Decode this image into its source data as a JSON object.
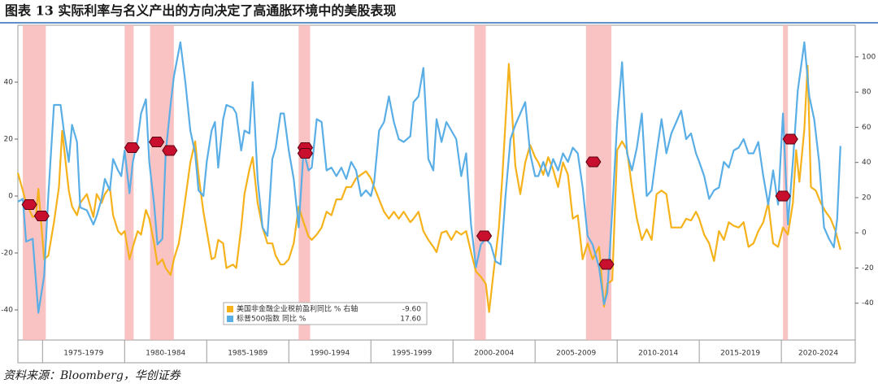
{
  "chart_data": {
    "type": "line",
    "title": "图表 13 实际利率与名义产出的方向决定了高通胀环境中的美股表现",
    "source": "资料来源：Bloomberg，华创证券",
    "xlim": [
      1973.5,
      2024.5
    ],
    "xticks": [
      {
        "value": 1975,
        "label": "1975-1979"
      },
      {
        "value": 1980,
        "label": "1980-1984"
      },
      {
        "value": 1985,
        "label": "1985-1989"
      },
      {
        "value": 1990,
        "label": "1990-1994"
      },
      {
        "value": 1995,
        "label": "1995-1999"
      },
      {
        "value": 2000,
        "label": "2000-2004"
      },
      {
        "value": 2005,
        "label": "2005-2009"
      },
      {
        "value": 2010,
        "label": "2010-2014"
      },
      {
        "value": 2015,
        "label": "2015-2019"
      },
      {
        "value": 2020,
        "label": "2020-2024"
      }
    ],
    "ylim": [
      -50,
      60
    ],
    "yticks": [
      -40,
      -20,
      0,
      20,
      40
    ],
    "y2lim": [
      -60,
      118
    ],
    "y2ticks": [
      -40,
      -20,
      0,
      20,
      40,
      60,
      80,
      100
    ],
    "shaded_periods": [
      [
        1973.8,
        1975.2
      ],
      [
        1980.0,
        1980.55
      ],
      [
        1981.55,
        1983.0
      ],
      [
        1990.6,
        1991.3
      ],
      [
        2001.3,
        2002.0
      ],
      [
        2008.1,
        2009.65
      ],
      [
        2020.1,
        2020.4
      ]
    ],
    "shade_color": "#f8b4b4",
    "markers": {
      "color": "#c8102e",
      "x": [
        1974.2,
        1974.95,
        1980.45,
        1981.95,
        1982.75,
        1991.0,
        1991.0,
        2001.9,
        2008.55,
        2009.35,
        2020.1,
        2020.55
      ],
      "y": [
        -3,
        -7,
        17,
        19,
        16,
        17,
        15,
        -14,
        12,
        -24,
        0,
        20
      ]
    },
    "series": [
      {
        "name": "美国非金融企业税前盈利同比 % 右轴",
        "legend_value": "-9.60",
        "color": "#f5b21b",
        "axis": "y2",
        "x": [
          1973.5,
          1973.8,
          1974.0,
          1974.4,
          1974.6,
          1974.75,
          1975.1,
          1975.35,
          1975.7,
          1976.0,
          1976.2,
          1976.6,
          1976.8,
          1977.1,
          1977.3,
          1977.7,
          1978.1,
          1978.3,
          1978.6,
          1978.8,
          1979.1,
          1979.3,
          1979.6,
          1979.8,
          1980.0,
          1980.3,
          1980.5,
          1980.8,
          1981.0,
          1981.3,
          1981.5,
          1981.8,
          1982.0,
          1982.3,
          1982.5,
          1982.8,
          1983.0,
          1983.3,
          1983.5,
          1983.8,
          1984.0,
          1984.3,
          1984.5,
          1984.8,
          1985.0,
          1985.3,
          1985.5,
          1985.7,
          1986.0,
          1986.2,
          1986.6,
          1986.8,
          1987.1,
          1987.3,
          1987.6,
          1987.8,
          1988.1,
          1988.4,
          1988.7,
          1989.0,
          1989.2,
          1989.5,
          1989.7,
          1990.0,
          1990.3,
          1990.6,
          1990.9,
          1991.2,
          1991.4,
          1991.7,
          1992.0,
          1992.3,
          1992.6,
          1992.9,
          1993.2,
          1993.5,
          1993.8,
          1994.1,
          1994.4,
          1994.7,
          1995.0,
          1995.2,
          1995.5,
          1995.8,
          1996.1,
          1996.4,
          1996.7,
          1997.0,
          1997.4,
          1997.6,
          1997.9,
          1998.2,
          1998.5,
          1998.8,
          1999.0,
          1999.3,
          1999.6,
          1999.9,
          2000.2,
          2000.5,
          2000.8,
          2001.1,
          2001.4,
          2001.7,
          2002.0,
          2002.2,
          2002.5,
          2002.8,
          2003.0,
          2003.2,
          2003.4,
          2003.6,
          2003.8,
          2004.1,
          2004.4,
          2004.7,
          2005.0,
          2005.2,
          2005.5,
          2005.8,
          2006.1,
          2006.4,
          2006.7,
          2007.0,
          2007.3,
          2007.6,
          2007.9,
          2008.2,
          2008.5,
          2008.9,
          2009.2,
          2009.4,
          2009.7,
          2010.0,
          2010.3,
          2010.6,
          2010.9,
          2011.2,
          2011.5,
          2011.8,
          2012.1,
          2012.4,
          2012.7,
          2013.0,
          2013.3,
          2013.6,
          2013.9,
          2014.2,
          2014.5,
          2014.8,
          2015.0,
          2015.3,
          2015.6,
          2015.9,
          2016.2,
          2016.5,
          2016.8,
          2017.1,
          2017.4,
          2017.7,
          2018.0,
          2018.3,
          2018.6,
          2018.9,
          2019.2,
          2019.5,
          2019.8,
          2020.1,
          2020.4,
          2020.7,
          2020.9,
          2021.1,
          2021.4,
          2021.6,
          2021.8,
          2022.1,
          2022.4,
          2022.7,
          2023.0,
          2023.3,
          2023.6
        ],
        "values": [
          34,
          24,
          17,
          9,
          10,
          25,
          -15,
          -13,
          6,
          26,
          58,
          24,
          15,
          10,
          17,
          22,
          9,
          22,
          17,
          22,
          26,
          10,
          1,
          -1,
          1,
          -15,
          -8,
          1,
          -1,
          13,
          8,
          -6,
          -18,
          -15,
          -20,
          -24,
          -15,
          -6,
          6,
          26,
          40,
          52,
          33,
          12,
          1,
          -15,
          -14,
          -4,
          -6,
          -20,
          -18,
          -20,
          3,
          22,
          36,
          43,
          17,
          3,
          -6,
          -6,
          -13,
          -18,
          -18,
          -15,
          -6,
          15,
          6,
          -2,
          -4,
          -1,
          3,
          12,
          10,
          19,
          19,
          26,
          26,
          31,
          33,
          35,
          31,
          26,
          19,
          12,
          8,
          12,
          8,
          12,
          6,
          8,
          12,
          1,
          -4,
          -8,
          -11,
          0,
          1,
          -4,
          1,
          -1,
          1,
          -11,
          -22,
          -25,
          -29,
          -45,
          -20,
          3,
          31,
          63,
          96,
          68,
          38,
          22,
          40,
          50,
          43,
          40,
          33,
          43,
          36,
          26,
          40,
          33,
          8,
          10,
          -15,
          -6,
          -15,
          -8,
          -42,
          -29,
          -27,
          47,
          52,
          47,
          26,
          8,
          -4,
          2,
          -4,
          22,
          24,
          22,
          3,
          3,
          3,
          8,
          7,
          12,
          8,
          -1,
          -6,
          -16,
          1,
          -4,
          6,
          4,
          3,
          6,
          -8,
          -6,
          1,
          6,
          17,
          -6,
          -8,
          3,
          -1,
          17,
          47,
          29,
          59,
          95,
          26,
          24,
          17,
          12,
          8,
          1,
          -9.6
        ]
      },
      {
        "name": "标普500指数 同比 %",
        "legend_value": "17.60",
        "color": "#5aaee6",
        "x": [
          1973.5,
          1973.8,
          1974.0,
          1974.4,
          1974.75,
          1975.1,
          1975.35,
          1975.7,
          1976.1,
          1976.3,
          1976.6,
          1976.8,
          1977.1,
          1977.3,
          1977.7,
          1978.1,
          1978.3,
          1978.6,
          1978.8,
          1979.1,
          1979.3,
          1979.6,
          1979.8,
          1980.0,
          1980.3,
          1980.5,
          1980.8,
          1981.0,
          1981.3,
          1981.5,
          1981.8,
          1982.0,
          1982.3,
          1982.5,
          1982.8,
          1983.0,
          1983.4,
          1983.7,
          1984.0,
          1984.3,
          1984.5,
          1984.8,
          1985.0,
          1985.3,
          1985.5,
          1985.7,
          1986.0,
          1986.2,
          1986.6,
          1986.8,
          1987.1,
          1987.3,
          1987.6,
          1987.8,
          1988.1,
          1988.4,
          1988.7,
          1989.0,
          1989.2,
          1989.5,
          1989.7,
          1990.0,
          1990.3,
          1990.6,
          1990.9,
          1991.2,
          1991.4,
          1991.7,
          1992.0,
          1992.3,
          1992.6,
          1992.9,
          1993.2,
          1993.5,
          1993.8,
          1994.1,
          1994.4,
          1994.7,
          1995.0,
          1995.2,
          1995.5,
          1995.8,
          1996.1,
          1996.4,
          1996.7,
          1997.0,
          1997.4,
          1997.6,
          1997.9,
          1998.2,
          1998.5,
          1998.8,
          1999.0,
          1999.3,
          1999.6,
          1999.9,
          2000.2,
          2000.5,
          2000.8,
          2001.1,
          2001.4,
          2001.7,
          2002.0,
          2002.3,
          2002.6,
          2002.9,
          2003.2,
          2003.5,
          2003.8,
          2004.1,
          2004.4,
          2004.7,
          2005.0,
          2005.2,
          2005.5,
          2005.8,
          2006.1,
          2006.4,
          2006.7,
          2007.0,
          2007.3,
          2007.6,
          2007.9,
          2008.2,
          2008.5,
          2008.9,
          2009.2,
          2009.4,
          2009.7,
          2010.0,
          2010.3,
          2010.6,
          2010.9,
          2011.2,
          2011.5,
          2011.8,
          2012.1,
          2012.4,
          2012.7,
          2013.0,
          2013.3,
          2013.6,
          2013.9,
          2014.2,
          2014.5,
          2014.8,
          2015.0,
          2015.3,
          2015.6,
          2015.9,
          2016.2,
          2016.5,
          2016.8,
          2017.1,
          2017.4,
          2017.7,
          2018.0,
          2018.3,
          2018.6,
          2018.9,
          2019.2,
          2019.5,
          2019.8,
          2020.1,
          2020.4,
          2020.7,
          2021.0,
          2021.4,
          2021.7,
          2022.0,
          2022.3,
          2022.6,
          2022.9,
          2023.2,
          2023.4,
          2023.6
        ],
        "values": [
          -2,
          -1,
          -16,
          -15,
          -41,
          -28,
          0,
          32,
          32,
          23,
          12,
          25,
          19,
          -4,
          -5,
          -10,
          -7,
          -1,
          6,
          2,
          13,
          9,
          7,
          16,
          1,
          12,
          20,
          29,
          34,
          12,
          -3,
          -17,
          -15,
          15,
          32,
          42,
          54,
          40,
          23,
          15,
          2,
          0,
          12,
          23,
          26,
          10,
          27,
          32,
          31,
          29,
          16,
          23,
          22,
          40,
          6,
          -11,
          -14,
          13,
          17,
          29,
          29,
          16,
          6,
          -11,
          16,
          9,
          10,
          27,
          26,
          9,
          10,
          7,
          10,
          6,
          12,
          9,
          0,
          2,
          0,
          5,
          23,
          26,
          35,
          26,
          20,
          19,
          21,
          33,
          35,
          45,
          13,
          9,
          27,
          19,
          26,
          23,
          20,
          7,
          15,
          -10,
          -25,
          -17,
          -15,
          -17,
          -23,
          -24,
          0,
          20,
          25,
          29,
          33,
          15,
          7,
          7,
          12,
          7,
          13,
          9,
          15,
          12,
          17,
          15,
          3,
          -14,
          -17,
          -25,
          -38,
          -34,
          -5,
          26,
          47,
          15,
          9,
          17,
          29,
          0,
          2,
          15,
          27,
          15,
          22,
          26,
          30,
          20,
          22,
          15,
          12,
          7,
          -1,
          2,
          3,
          12,
          10,
          16,
          17,
          20,
          15,
          15,
          19,
          7,
          -3,
          9,
          -3,
          29,
          -10,
          12,
          37,
          54,
          35,
          27,
          12,
          -11,
          -15,
          -18,
          -8,
          17.6
        ]
      }
    ]
  }
}
